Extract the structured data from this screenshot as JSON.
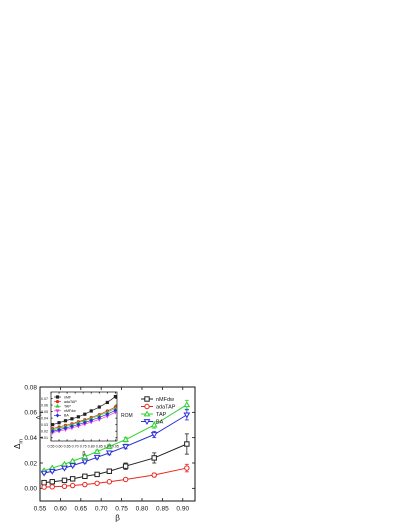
{
  "chart_data": [
    {
      "id": "main",
      "type": "line",
      "xlabel": "β",
      "ylabel": "Δ",
      "ylabel_sub": "m",
      "xlim": [
        0.55,
        0.93
      ],
      "ylim": [
        -0.01,
        0.08
      ],
      "xticks": [
        "0.55",
        "0.60",
        "0.65",
        "0.70",
        "0.75",
        "0.80",
        "0.85",
        "0.90"
      ],
      "xtick_values": [
        0.55,
        0.6,
        0.65,
        0.7,
        0.75,
        0.8,
        0.85,
        0.9
      ],
      "yticks": [
        "0.00",
        "0.02",
        "0.04",
        "0.06",
        "0.08"
      ],
      "ytick_values": [
        0.0,
        0.02,
        0.04,
        0.06,
        0.08
      ],
      "legend_position": "right-middle",
      "x": [
        0.56,
        0.58,
        0.61,
        0.63,
        0.66,
        0.69,
        0.72,
        0.76,
        0.83,
        0.91
      ],
      "series": [
        {
          "name": "nMFdw",
          "color": "#222222",
          "marker": "square",
          "values": [
            0.0045,
            0.0052,
            0.0063,
            0.0075,
            0.0095,
            0.011,
            0.0135,
            0.0175,
            0.024,
            0.035
          ],
          "errors": [
            0.0004,
            0.0005,
            0.0006,
            0.0008,
            0.001,
            0.0013,
            0.0018,
            0.0025,
            0.004,
            0.008
          ]
        },
        {
          "name": "adaTAP",
          "color": "#e8271f",
          "marker": "circle",
          "values": [
            0.001,
            0.0012,
            0.0016,
            0.0022,
            0.003,
            0.004,
            0.0052,
            0.007,
            0.0105,
            0.016
          ],
          "errors": [
            0.0002,
            0.0002,
            0.0003,
            0.0004,
            0.0005,
            0.0006,
            0.0008,
            0.001,
            0.0015,
            0.003
          ]
        },
        {
          "name": "TAP",
          "color": "#2fd02f",
          "marker": "triangle-up",
          "values": [
            0.014,
            0.016,
            0.019,
            0.0215,
            0.025,
            0.029,
            0.033,
            0.0385,
            0.05,
            0.066
          ],
          "errors": [
            0.0006,
            0.0007,
            0.0008,
            0.0009,
            0.001,
            0.0012,
            0.0015,
            0.0018,
            0.0025,
            0.0035
          ]
        },
        {
          "name": "BA",
          "color": "#2b2fd6",
          "marker": "triangle-down",
          "values": [
            0.012,
            0.0135,
            0.016,
            0.018,
            0.021,
            0.0245,
            0.028,
            0.033,
            0.0425,
            0.058
          ],
          "errors": [
            0.0006,
            0.0007,
            0.0008,
            0.0009,
            0.001,
            0.0012,
            0.0015,
            0.0018,
            0.0025,
            0.004
          ]
        }
      ]
    },
    {
      "id": "inset",
      "type": "line",
      "xlabel": "β",
      "ylabel": "Δ",
      "ylabel_sub": "n",
      "annotation": "ROM",
      "xlim": [
        0.55,
        0.96
      ],
      "ylim": [
        0.005,
        0.08
      ],
      "xticks": [
        "0.55",
        "0.60",
        "0.65",
        "0.70",
        "0.75",
        "0.80",
        "0.85",
        "0.90",
        "0.95"
      ],
      "xtick_values": [
        0.55,
        0.6,
        0.65,
        0.7,
        0.75,
        0.8,
        0.85,
        0.9,
        0.95
      ],
      "yticks": [
        "0.01",
        "0.02",
        "0.03",
        "0.04",
        "0.05",
        "0.06",
        "0.07"
      ],
      "ytick_values": [
        0.01,
        0.02,
        0.03,
        0.04,
        0.05,
        0.06,
        0.07
      ],
      "legend_position": "top-left",
      "x": [
        0.56,
        0.6,
        0.64,
        0.68,
        0.72,
        0.76,
        0.8,
        0.85,
        0.9,
        0.95
      ],
      "series": [
        {
          "name": "nMF",
          "color": "#222222",
          "marker": "square",
          "values": [
            0.03,
            0.033,
            0.036,
            0.039,
            0.042,
            0.046,
            0.051,
            0.057,
            0.064,
            0.073
          ]
        },
        {
          "name": "adaTAP",
          "color": "#e8271f",
          "marker": "circle",
          "values": [
            0.024,
            0.0265,
            0.029,
            0.0315,
            0.0345,
            0.0375,
            0.041,
            0.0455,
            0.051,
            0.057
          ]
        },
        {
          "name": "TAP",
          "color": "#2fd02f",
          "marker": "triangle-up",
          "values": [
            0.022,
            0.0245,
            0.027,
            0.03,
            0.033,
            0.036,
            0.0395,
            0.044,
            0.049,
            0.055
          ]
        },
        {
          "name": "nMFdw",
          "color": "#e040e0",
          "marker": "triangle-down",
          "values": [
            0.018,
            0.02,
            0.0225,
            0.025,
            0.0278,
            0.0308,
            0.034,
            0.038,
            0.043,
            0.049
          ]
        },
        {
          "name": "BA",
          "color": "#2b2fd6",
          "marker": "diamond",
          "values": [
            0.02,
            0.0222,
            0.0248,
            0.0275,
            0.0303,
            0.0333,
            0.0367,
            0.041,
            0.046,
            0.052
          ]
        }
      ]
    }
  ]
}
